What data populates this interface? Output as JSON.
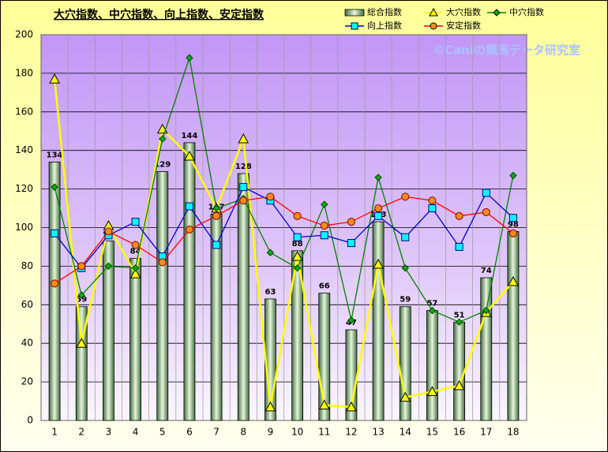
{
  "chart_data": {
    "type": "combo",
    "title": "大穴指数、中穴指数、向上指数、安定指数",
    "watermark": "©Caniの競馬データ研究室",
    "categories": [
      "1",
      "2",
      "3",
      "4",
      "5",
      "6",
      "7",
      "8",
      "9",
      "10",
      "11",
      "12",
      "13",
      "14",
      "15",
      "16",
      "17",
      "18"
    ],
    "ylim": [
      0,
      200
    ],
    "yticks": [
      0,
      20,
      40,
      60,
      80,
      100,
      120,
      140,
      160,
      180,
      200
    ],
    "grid": true,
    "series": [
      {
        "name": "総合指数",
        "type": "bar",
        "color": "#6a9a5a",
        "values": [
          134,
          59,
          93,
          84,
          129,
          144,
          107,
          128,
          63,
          88,
          66,
          47,
          103,
          59,
          57,
          51,
          74,
          98
        ]
      },
      {
        "name": "大穴指数",
        "type": "line",
        "marker": "triangle",
        "color": "#ffff00",
        "marker_fill": "#ffff00",
        "values": [
          177,
          40,
          101,
          76,
          151,
          137,
          110,
          146,
          7,
          85,
          8,
          7,
          81,
          12,
          15,
          18,
          56,
          72
        ]
      },
      {
        "name": "中穴指数",
        "type": "line",
        "marker": "diamond",
        "color": "#008000",
        "marker_fill": "#00b000",
        "values": [
          121,
          65,
          80,
          79,
          146,
          188,
          110,
          115,
          87,
          79,
          112,
          52,
          126,
          79,
          57,
          51,
          57,
          127
        ]
      },
      {
        "name": "向上指数",
        "type": "line",
        "marker": "square",
        "color": "#0000cc",
        "marker_fill": "#00ffff",
        "values": [
          97,
          79,
          96,
          103,
          85,
          111,
          91,
          121,
          114,
          95,
          96,
          92,
          106,
          95,
          110,
          90,
          118,
          105
        ]
      },
      {
        "name": "安定指数",
        "type": "line",
        "marker": "circle",
        "color": "#ff0000",
        "marker_fill": "#ff8c1a",
        "values": [
          71,
          80,
          98,
          91,
          82,
          99,
          106,
          114,
          116,
          106,
          101,
          103,
          110,
          116,
          114,
          106,
          108,
          97
        ]
      }
    ]
  }
}
